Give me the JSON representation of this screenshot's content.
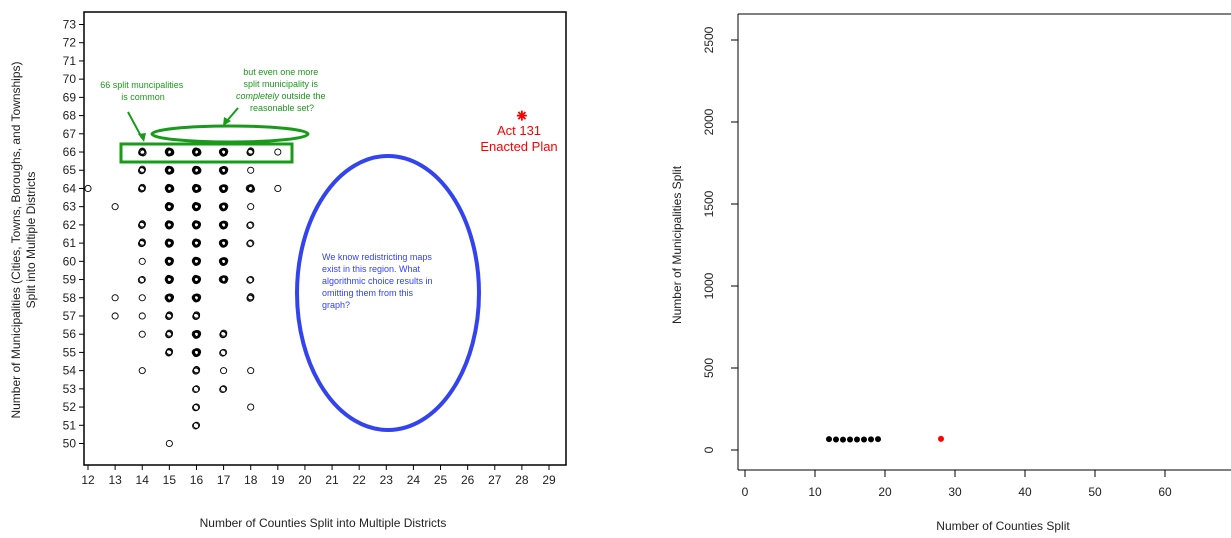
{
  "chart_data": [
    {
      "type": "scatter",
      "xlabel": "Number of Counties Split into Multiple Districts",
      "ylabel_lines": [
        "Number of Municipalities (Cities, Towns, Boroughs, and Townships)",
        "Split into Multiple Districts"
      ],
      "xlim": [
        12,
        29
      ],
      "ylim": [
        50,
        73
      ],
      "x_ticks": [
        12,
        13,
        14,
        15,
        16,
        17,
        18,
        19,
        20,
        21,
        22,
        23,
        24,
        25,
        26,
        27,
        28,
        29
      ],
      "y_ticks": [
        50,
        51,
        52,
        53,
        54,
        55,
        56,
        57,
        58,
        59,
        60,
        61,
        62,
        63,
        64,
        65,
        66,
        67,
        68,
        69,
        70,
        71,
        72,
        73
      ],
      "series": [
        {
          "marker": "open-circle",
          "color": "#000000",
          "points": [
            {
              "x": 12,
              "y": 64,
              "w": 1
            },
            {
              "x": 13,
              "y": 63,
              "w": 1
            },
            {
              "x": 13,
              "y": 58,
              "w": 1
            },
            {
              "x": 13,
              "y": 57,
              "w": 1
            },
            {
              "x": 14,
              "y": 66,
              "w": 4
            },
            {
              "x": 14,
              "y": 65,
              "w": 3
            },
            {
              "x": 14,
              "y": 64,
              "w": 3
            },
            {
              "x": 14,
              "y": 62,
              "w": 3
            },
            {
              "x": 14,
              "y": 61,
              "w": 3
            },
            {
              "x": 14,
              "y": 60,
              "w": 1
            },
            {
              "x": 14,
              "y": 59,
              "w": 2
            },
            {
              "x": 14,
              "y": 58,
              "w": 1
            },
            {
              "x": 14,
              "y": 57,
              "w": 1
            },
            {
              "x": 14,
              "y": 56,
              "w": 1
            },
            {
              "x": 14,
              "y": 54,
              "w": 1
            },
            {
              "x": 15,
              "y": 66,
              "w": 9
            },
            {
              "x": 15,
              "y": 65,
              "w": 9
            },
            {
              "x": 15,
              "y": 64,
              "w": 9
            },
            {
              "x": 15,
              "y": 63,
              "w": 8
            },
            {
              "x": 15,
              "y": 62,
              "w": 8
            },
            {
              "x": 15,
              "y": 61,
              "w": 8
            },
            {
              "x": 15,
              "y": 60,
              "w": 8
            },
            {
              "x": 15,
              "y": 59,
              "w": 8
            },
            {
              "x": 15,
              "y": 58,
              "w": 7
            },
            {
              "x": 15,
              "y": 57,
              "w": 3
            },
            {
              "x": 15,
              "y": 56,
              "w": 3
            },
            {
              "x": 15,
              "y": 55,
              "w": 3
            },
            {
              "x": 15,
              "y": 50,
              "w": 1
            },
            {
              "x": 16,
              "y": 66,
              "w": 9
            },
            {
              "x": 16,
              "y": 65,
              "w": 9
            },
            {
              "x": 16,
              "y": 64,
              "w": 9
            },
            {
              "x": 16,
              "y": 63,
              "w": 8
            },
            {
              "x": 16,
              "y": 62,
              "w": 8
            },
            {
              "x": 16,
              "y": 61,
              "w": 8
            },
            {
              "x": 16,
              "y": 60,
              "w": 8
            },
            {
              "x": 16,
              "y": 59,
              "w": 8
            },
            {
              "x": 16,
              "y": 58,
              "w": 7
            },
            {
              "x": 16,
              "y": 57,
              "w": 3
            },
            {
              "x": 16,
              "y": 56,
              "w": 7
            },
            {
              "x": 16,
              "y": 55,
              "w": 7
            },
            {
              "x": 16,
              "y": 54,
              "w": 3
            },
            {
              "x": 16,
              "y": 53,
              "w": 2
            },
            {
              "x": 16,
              "y": 52,
              "w": 2
            },
            {
              "x": 16,
              "y": 51,
              "w": 2
            },
            {
              "x": 17,
              "y": 66,
              "w": 7
            },
            {
              "x": 17,
              "y": 65,
              "w": 7
            },
            {
              "x": 17,
              "y": 64,
              "w": 7
            },
            {
              "x": 17,
              "y": 63,
              "w": 7
            },
            {
              "x": 17,
              "y": 62,
              "w": 7
            },
            {
              "x": 17,
              "y": 61,
              "w": 7
            },
            {
              "x": 17,
              "y": 60,
              "w": 7
            },
            {
              "x": 17,
              "y": 59,
              "w": 6
            },
            {
              "x": 17,
              "y": 56,
              "w": 3
            },
            {
              "x": 17,
              "y": 55,
              "w": 2
            },
            {
              "x": 17,
              "y": 54,
              "w": 1
            },
            {
              "x": 17,
              "y": 53,
              "w": 2
            },
            {
              "x": 18,
              "y": 66,
              "w": 3
            },
            {
              "x": 18,
              "y": 65,
              "w": 1
            },
            {
              "x": 18,
              "y": 64,
              "w": 5
            },
            {
              "x": 18,
              "y": 63,
              "w": 1
            },
            {
              "x": 18,
              "y": 62,
              "w": 2
            },
            {
              "x": 18,
              "y": 61,
              "w": 2
            },
            {
              "x": 18,
              "y": 59,
              "w": 2
            },
            {
              "x": 18,
              "y": 58,
              "w": 3
            },
            {
              "x": 18,
              "y": 54,
              "w": 1
            },
            {
              "x": 18,
              "y": 52,
              "w": 1
            },
            {
              "x": 19,
              "y": 66,
              "w": 1
            },
            {
              "x": 19,
              "y": 64,
              "w": 1
            }
          ]
        },
        {
          "marker": "asterisk",
          "color": "#ff0000",
          "points": [
            {
              "x": 28,
              "y": 68
            }
          ]
        }
      ],
      "annotations": {
        "enacted_plan": "Act 131\nEnacted Plan",
        "common_note": "66 split muncipalities\nis common",
        "outside_note_line1": "but even one more",
        "outside_note_line2": "split municipality is",
        "outside_note_line3_em": "completely",
        "outside_note_line3_rest": " outside the",
        "outside_note_line4": "reasonable set?",
        "blue_note": "We know redistricting maps\nexist in this region.  What\nalgorithmic choice results in\nomitting them from this\ngraph?"
      },
      "colors": {
        "green": "#1a9a1a",
        "blue": "#3344ee",
        "red": "#ff0000"
      }
    },
    {
      "type": "scatter",
      "xlabel": "Number of Counties Split",
      "ylabel": "Number of Municipalities Split",
      "xlim": [
        0,
        70
      ],
      "ylim": [
        0,
        2500
      ],
      "x_ticks": [
        0,
        10,
        20,
        30,
        40,
        50,
        60
      ],
      "y_ticks": [
        0,
        500,
        1000,
        1500,
        2000,
        2500
      ],
      "series": [
        {
          "marker": "filled-dot",
          "color": "#000000",
          "points": [
            {
              "x": 12,
              "y": 66
            },
            {
              "x": 13,
              "y": 64
            },
            {
              "x": 14,
              "y": 63
            },
            {
              "x": 15,
              "y": 64
            },
            {
              "x": 16,
              "y": 64
            },
            {
              "x": 17,
              "y": 64
            },
            {
              "x": 18,
              "y": 65
            },
            {
              "x": 19,
              "y": 66
            }
          ]
        },
        {
          "marker": "filled-dot",
          "color": "#ff0000",
          "points": [
            {
              "x": 28,
              "y": 68
            }
          ]
        }
      ]
    }
  ]
}
